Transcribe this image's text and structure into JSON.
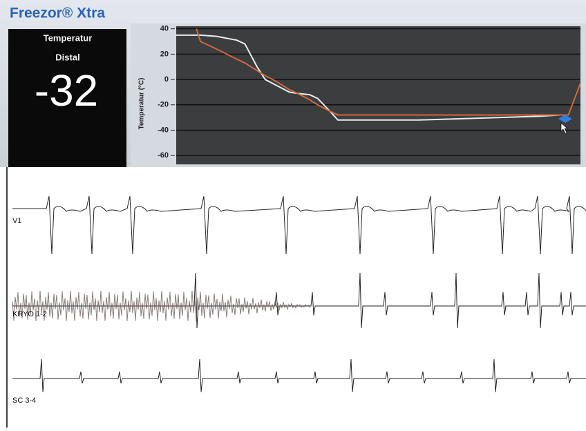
{
  "app_title": "Freezor® Xtra",
  "readout": {
    "label": "Temperatur",
    "sublabel": "Distal",
    "value": "-32"
  },
  "chart_data": {
    "type": "line",
    "y_label": "Temperatur (°C)",
    "x": [
      0,
      5,
      6,
      10,
      15,
      17,
      20,
      22,
      25,
      28,
      30,
      33,
      35,
      38,
      40,
      50,
      60,
      70,
      80,
      90,
      95,
      97,
      100
    ],
    "xlim": [
      0,
      100
    ],
    "series": [
      {
        "color": "#e8eef0",
        "values": [
          35,
          35,
          35,
          34,
          31,
          28,
          10,
          0,
          -5,
          -10,
          -11,
          -12,
          -15,
          -25,
          -32,
          -32,
          -32,
          -31,
          -30,
          -29,
          -28,
          null,
          null
        ]
      },
      {
        "color": "#d2693a",
        "values": [
          null,
          40,
          30,
          24,
          16,
          13,
          7,
          3,
          -2,
          -8,
          -11,
          -16,
          -20,
          -25,
          -28,
          -28,
          -28,
          -28,
          -28,
          -28,
          -28,
          -28,
          -3
        ]
      }
    ],
    "ylim": [
      -67,
      42
    ],
    "yticks": [
      40,
      20,
      0,
      -20,
      -40,
      -60
    ],
    "grid": true
  },
  "traces": [
    "V1",
    "KRYO 1-2",
    "SC 3-4"
  ]
}
